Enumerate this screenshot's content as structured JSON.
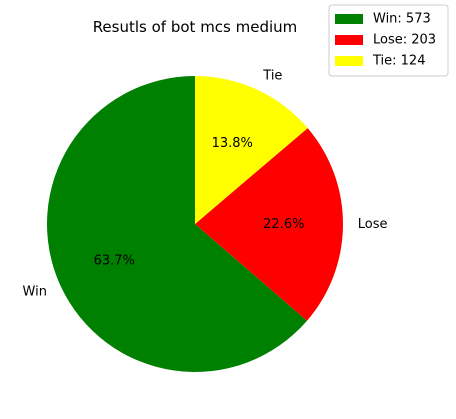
{
  "chart_data": {
    "type": "pie",
    "title": "Resutls of bot mcs medium",
    "categories": [
      "Win",
      "Lose",
      "Tie"
    ],
    "values": [
      573,
      203,
      124
    ],
    "percent_labels": [
      "63.7%",
      "22.6%",
      "13.8%"
    ],
    "colors": [
      "#008000",
      "#ff0000",
      "#ffff00"
    ],
    "legend": {
      "placement": "top-right",
      "entries": [
        "Win: 573",
        "Lose: 203",
        "Tie: 124"
      ]
    }
  }
}
